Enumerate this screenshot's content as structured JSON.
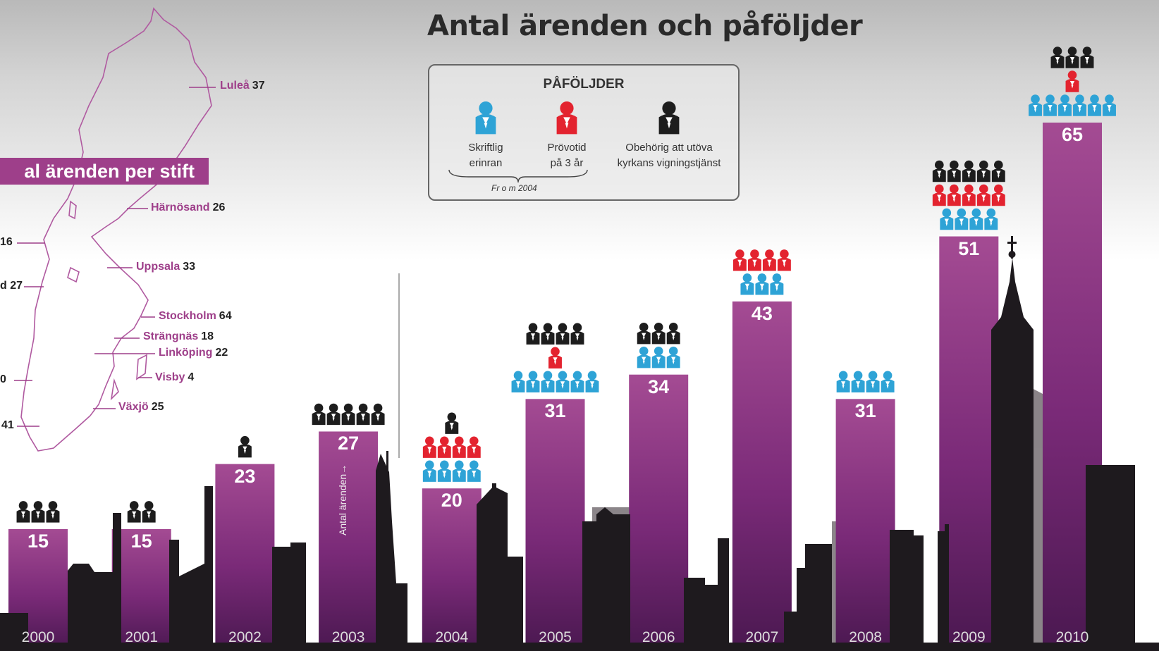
{
  "title": "Antal ärenden och påföljder",
  "legend": {
    "heading": "PÅFÖLJDER",
    "items": [
      {
        "key": "skriftlig",
        "line1": "Skriftlig",
        "line2": "erinran",
        "color": "#2ea3d6"
      },
      {
        "key": "provotid",
        "line1": "Prövotid",
        "line2": "på 3 år",
        "color": "#e3232f"
      },
      {
        "key": "obehorig",
        "line1": "Obehörig att utöva",
        "line2": "kyrkans vigningstjänst",
        "color": "#1d1d1d"
      }
    ],
    "from_note": "Fr o m 2004"
  },
  "map": {
    "title": "al ärenden per stift",
    "dioceses": [
      {
        "name": "Luleå",
        "count": "37"
      },
      {
        "name": "Härnösand",
        "count": "26"
      },
      {
        "name": "Uppsala",
        "count": "33"
      },
      {
        "name": "Stockholm",
        "count": "64"
      },
      {
        "name": "Strängnäs",
        "count": "18"
      },
      {
        "name": "Linköping",
        "count": "22"
      },
      {
        "name": "Visby",
        "count": "4"
      },
      {
        "name": "Växjö",
        "count": "25"
      }
    ],
    "partial_counts": [
      "16",
      "d 27",
      "0",
      "41"
    ]
  },
  "axis_label": "Antal ärenden→",
  "chart_data": {
    "type": "bar",
    "title": "Antal ärenden och påföljder",
    "xlabel": "",
    "ylabel": "Antal ärenden",
    "categories": [
      "2000",
      "2001",
      "2002",
      "2003",
      "2004",
      "2005",
      "2006",
      "2007",
      "2008",
      "2009",
      "2010"
    ],
    "values": [
      15,
      15,
      23,
      27,
      20,
      31,
      34,
      43,
      31,
      51,
      65
    ],
    "ylim": [
      0,
      70
    ],
    "penalties": [
      {
        "year": "2000",
        "skriftlig": 0,
        "provotid": 0,
        "obehorig": 3
      },
      {
        "year": "2001",
        "skriftlig": 0,
        "provotid": 0,
        "obehorig": 2
      },
      {
        "year": "2002",
        "skriftlig": 0,
        "provotid": 0,
        "obehorig": 1
      },
      {
        "year": "2003",
        "skriftlig": 0,
        "provotid": 0,
        "obehorig": 5
      },
      {
        "year": "2004",
        "skriftlig": 4,
        "provotid": 4,
        "obehorig": 1
      },
      {
        "year": "2005",
        "skriftlig": 6,
        "provotid": 1,
        "obehorig": 4
      },
      {
        "year": "2006",
        "skriftlig": 3,
        "provotid": 0,
        "obehorig": 3
      },
      {
        "year": "2007",
        "skriftlig": 3,
        "provotid": 4,
        "obehorig": 0
      },
      {
        "year": "2008",
        "skriftlig": 4,
        "provotid": 0,
        "obehorig": 0
      },
      {
        "year": "2009",
        "skriftlig": 4,
        "provotid": 5,
        "obehorig": 5
      },
      {
        "year": "2010",
        "skriftlig": 6,
        "provotid": 1,
        "obehorig": 3
      }
    ],
    "colors": {
      "bar": "#9e3f8a",
      "skriftlig": "#2ea3d6",
      "provotid": "#e3232f",
      "obehorig": "#1d1d1d"
    }
  }
}
